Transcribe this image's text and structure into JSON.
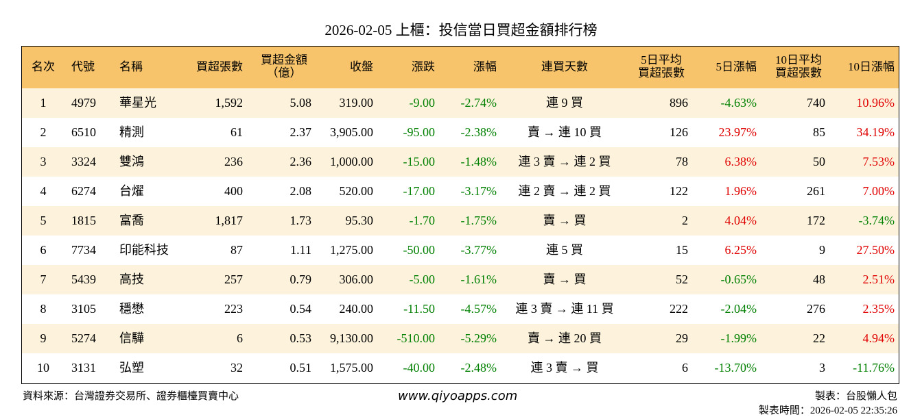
{
  "title": "2026-02-05 上櫃：投信當日買超金額排行榜",
  "colors": {
    "up": "#e00000",
    "down": "#008000",
    "header": "#f7c46c",
    "stripe": "#fdf3dc"
  },
  "table": {
    "header": [
      [
        "名次"
      ],
      [
        "代號"
      ],
      [
        "名稱"
      ],
      [
        "買超張數"
      ],
      [
        "買超金額",
        "（億）"
      ],
      [
        "收盤"
      ],
      [
        "漲跌"
      ],
      [
        "漲幅"
      ],
      [
        "連買天數"
      ],
      [
        "5日平均",
        "買超張數"
      ],
      [
        "5日漲幅"
      ],
      [
        "10日平均",
        "買超張數"
      ],
      [
        "10日漲幅"
      ]
    ],
    "rows": [
      [
        "1",
        "4979",
        "華星光",
        "1,592",
        "5.08",
        "319.00",
        "-9.00",
        "-2.74%",
        "連 9 買",
        "896",
        "-4.63%",
        "740",
        "10.96%"
      ],
      [
        "2",
        "6510",
        "精測",
        "61",
        "2.37",
        "3,905.00",
        "-95.00",
        "-2.38%",
        "賣 → 連 10 買",
        "126",
        "23.97%",
        "85",
        "34.19%"
      ],
      [
        "3",
        "3324",
        "雙鴻",
        "236",
        "2.36",
        "1,000.00",
        "-15.00",
        "-1.48%",
        "連 3 賣 → 連 2 買",
        "78",
        "6.38%",
        "50",
        "7.53%"
      ],
      [
        "4",
        "6274",
        "台燿",
        "400",
        "2.08",
        "520.00",
        "-17.00",
        "-3.17%",
        "連 2 賣 → 連 2 買",
        "122",
        "1.96%",
        "261",
        "7.00%"
      ],
      [
        "5",
        "1815",
        "富喬",
        "1,817",
        "1.73",
        "95.30",
        "-1.70",
        "-1.75%",
        "賣 → 買",
        "2",
        "4.04%",
        "172",
        "-3.74%"
      ],
      [
        "6",
        "7734",
        "印能科技",
        "87",
        "1.11",
        "1,275.00",
        "-50.00",
        "-3.77%",
        "連 5 買",
        "15",
        "6.25%",
        "9",
        "27.50%"
      ],
      [
        "7",
        "5439",
        "高技",
        "257",
        "0.79",
        "306.00",
        "-5.00",
        "-1.61%",
        "賣 → 買",
        "52",
        "-0.65%",
        "48",
        "2.51%"
      ],
      [
        "8",
        "3105",
        "穩懋",
        "223",
        "0.54",
        "240.00",
        "-11.50",
        "-4.57%",
        "連 3 賣 → 連 11 買",
        "222",
        "-2.04%",
        "276",
        "2.35%"
      ],
      [
        "9",
        "5274",
        "信驊",
        "6",
        "0.53",
        "9,130.00",
        "-510.00",
        "-5.29%",
        "賣 → 連 20 買",
        "29",
        "-1.99%",
        "22",
        "4.94%"
      ],
      [
        "10",
        "3131",
        "弘塑",
        "32",
        "0.51",
        "1,575.00",
        "-40.00",
        "-2.48%",
        "連 3 賣 → 買",
        "6",
        "-13.70%",
        "3",
        "-11.76%"
      ]
    ]
  },
  "footer": {
    "source": "資料來源：台灣證券交易所、證券櫃檯買賣中心",
    "website": "www.qiyoapps.com",
    "maker": "製表：台股懶人包",
    "time": "製表時間：2026-02-05 22:35:26"
  }
}
